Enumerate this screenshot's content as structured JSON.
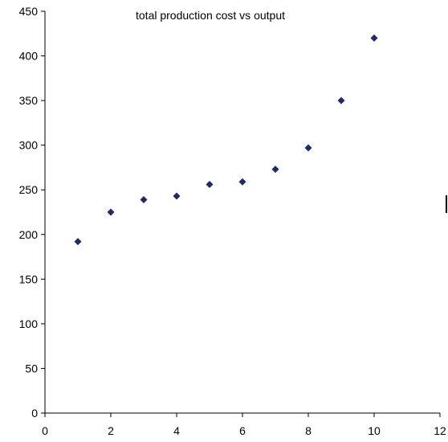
{
  "chart_data": {
    "type": "scatter",
    "title": "total production cost vs output",
    "xlabel": "",
    "ylabel": "",
    "xlim": [
      0,
      12
    ],
    "ylim": [
      0,
      450
    ],
    "x_ticks": [
      0,
      2,
      4,
      6,
      8,
      10,
      12
    ],
    "y_ticks": [
      0,
      50,
      100,
      150,
      200,
      250,
      300,
      350,
      400,
      450
    ],
    "grid": false,
    "legend": "none",
    "marker": "diamond",
    "marker_color": "#1f2a6b",
    "axis_color": "#000000",
    "series": [
      {
        "x": [
          1,
          2,
          3,
          4,
          5,
          6,
          7,
          8,
          9,
          10
        ],
        "y": [
          192,
          225,
          239,
          243,
          256,
          259,
          273,
          297,
          350,
          420
        ]
      }
    ]
  }
}
